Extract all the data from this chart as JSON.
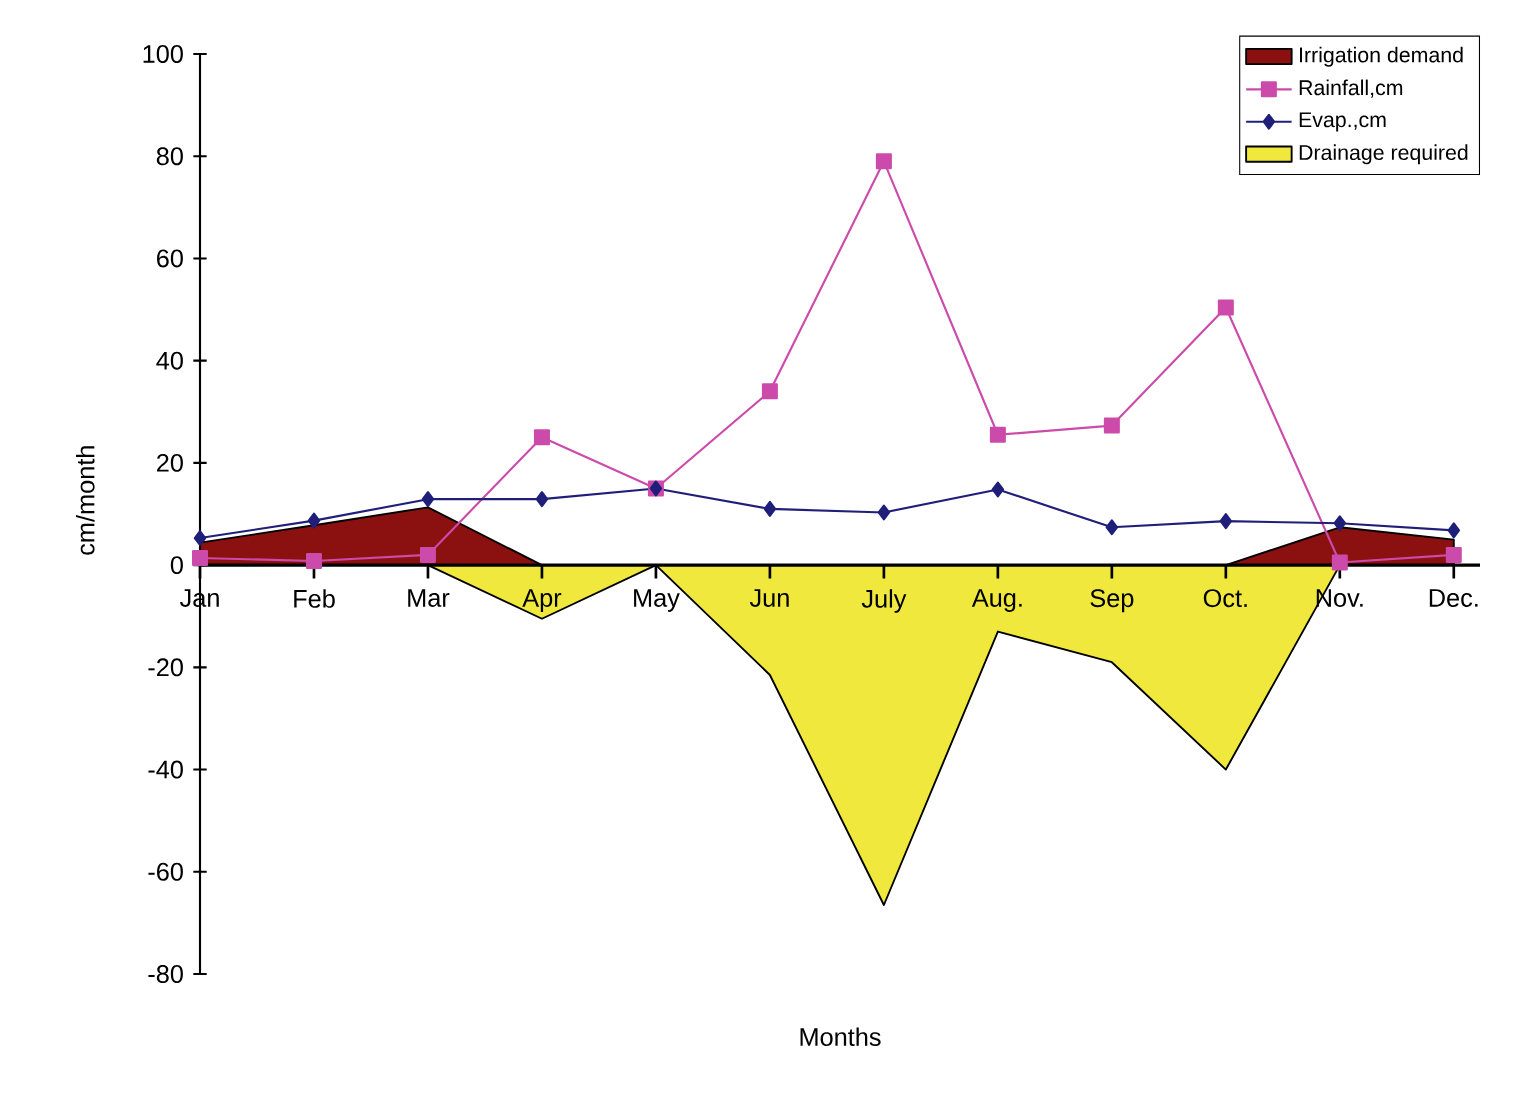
{
  "chart_data": {
    "type": "line",
    "xlabel": "Months",
    "ylabel": "cm/month",
    "categories": [
      "Jan",
      "Feb",
      "Mar",
      "Apr",
      "May",
      "Jun",
      "July",
      "Aug.",
      "Sep",
      "Oct.",
      "Nov.",
      "Dec."
    ],
    "series": [
      {
        "name": "Irrigation demand",
        "type": "area",
        "color": "#8b1010",
        "marker": "none",
        "values": [
          4.4,
          7.8,
          11.3,
          0,
          0,
          0,
          0,
          0,
          0,
          0,
          7.4,
          5
        ]
      },
      {
        "name": "Rainfall,cm",
        "color": "#cc4aaa",
        "marker": "square",
        "values": [
          1.4,
          0.8,
          2,
          25,
          15,
          34,
          79,
          25.5,
          27.3,
          50.4,
          0.5,
          2
        ]
      },
      {
        "name": "Evap.,cm",
        "color": "#1f1f7a",
        "marker": "diamond",
        "values": [
          5.3,
          8.7,
          12.9,
          12.9,
          15,
          11,
          10.3,
          14.8,
          7.4,
          8.6,
          8.2,
          6.8
        ]
      },
      {
        "name": "Drainage required",
        "type": "area",
        "color": "#f0e83c",
        "marker": "none",
        "values": [
          0,
          0,
          0,
          -10.5,
          0,
          -21.5,
          -66.5,
          -13,
          -19,
          -40,
          0,
          0
        ]
      }
    ],
    "ylim": [
      -80,
      100
    ],
    "yticks": [
      -80,
      -60,
      -40,
      -20,
      0,
      20,
      40,
      60,
      80,
      100
    ],
    "grid": false,
    "legend": "top right"
  }
}
